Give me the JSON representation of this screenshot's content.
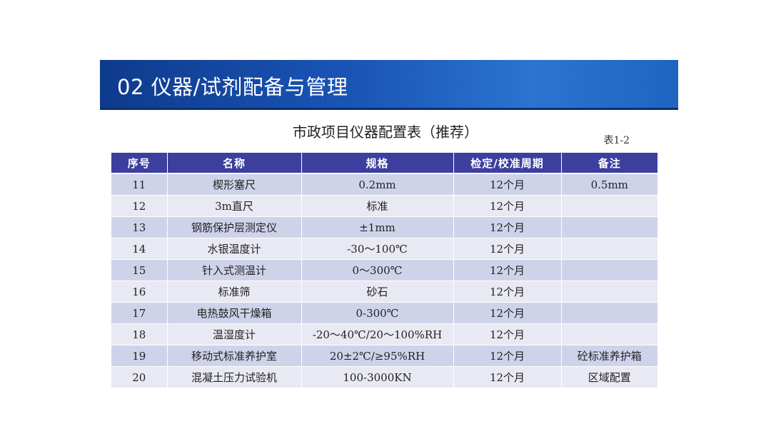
{
  "slide": {
    "title": "02  仪器/试剂配备与管理"
  },
  "table": {
    "caption": "市政项目仪器配置表（推荐）",
    "number": "表1-2",
    "headers": [
      "序号",
      "名称",
      "规格",
      "检定/校准周期",
      "备注"
    ],
    "note_color": "#e02020",
    "header_color": "#3c3f9e",
    "rows": [
      {
        "no": "11",
        "name": "楔形塞尺",
        "spec": "0.2mm",
        "period": "12个月",
        "note": "0.5mm"
      },
      {
        "no": "12",
        "name": "3m直尺",
        "spec": "标准",
        "period": "12个月",
        "note": ""
      },
      {
        "no": "13",
        "name": "钢筋保护层测定仪",
        "spec": "±1mm",
        "period": "12个月",
        "note": ""
      },
      {
        "no": "14",
        "name": "水银温度计",
        "spec": "-30～100℃",
        "period": "12个月",
        "note": ""
      },
      {
        "no": "15",
        "name": "针入式测温计",
        "spec": "0～300℃",
        "period": "12个月",
        "note": ""
      },
      {
        "no": "16",
        "name": "标准筛",
        "spec": "砂石",
        "period": "12个月",
        "note": ""
      },
      {
        "no": "17",
        "name": "电热鼓风干燥箱",
        "spec": "0-300℃",
        "period": "12个月",
        "note": ""
      },
      {
        "no": "18",
        "name": "温湿度计",
        "spec": "-20～40℃/20～100%RH",
        "period": "12个月",
        "note": ""
      },
      {
        "no": "19",
        "name": "移动式标准养护室",
        "spec": "20±2℃/≥95%RH",
        "period": "12个月",
        "note": "砼标准养护箱"
      },
      {
        "no": "20",
        "name": "混凝土压力试验机",
        "spec": "100-3000KN",
        "period": "12个月",
        "note": "区域配置"
      }
    ]
  }
}
